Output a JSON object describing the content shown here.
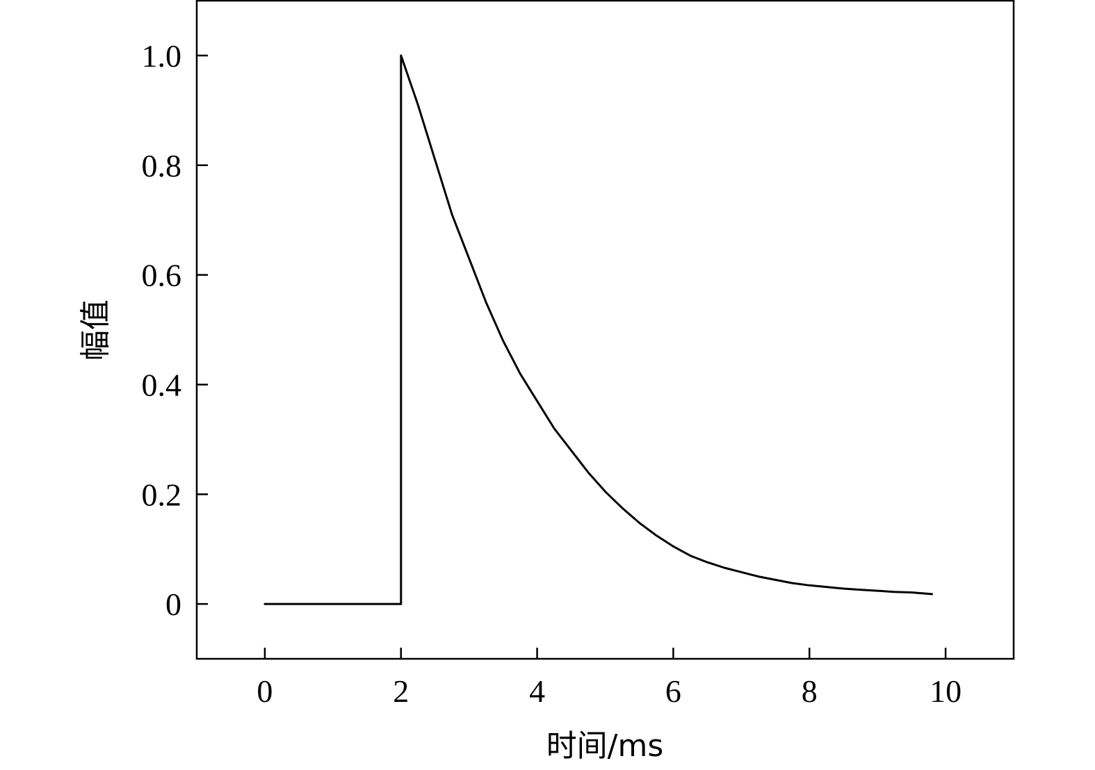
{
  "chart_data": {
    "type": "line",
    "title": "",
    "xlabel": "时间/ms",
    "ylabel": "幅值",
    "xlim": [
      -1,
      11
    ],
    "ylim": [
      -0.1,
      1.1
    ],
    "x_ticks": [
      0,
      2,
      4,
      6,
      8,
      10
    ],
    "x_tick_labels": [
      "0",
      "2",
      "4",
      "6",
      "8",
      "10"
    ],
    "y_ticks": [
      0,
      0.2,
      0.4,
      0.6,
      0.8,
      1.0
    ],
    "y_tick_labels": [
      "0",
      "0.2",
      "0.4",
      "0.6",
      "0.8",
      "1.0"
    ],
    "grid": false,
    "legend": "none",
    "line_color": "#000000",
    "series": [
      {
        "x": [
          0,
          2,
          2,
          2.25,
          2.5,
          2.75,
          3.0,
          3.25,
          3.5,
          3.75,
          4.0,
          4.25,
          4.5,
          4.75,
          5.0,
          5.25,
          5.5,
          5.75,
          6.0,
          6.25,
          6.5,
          6.75,
          7.0,
          7.25,
          7.5,
          7.75,
          8.0,
          8.25,
          8.5,
          8.75,
          9.0,
          9.25,
          9.5,
          9.8
        ],
        "y": [
          0,
          0,
          1.0,
          0.91,
          0.81,
          0.71,
          0.63,
          0.55,
          0.48,
          0.42,
          0.37,
          0.32,
          0.28,
          0.24,
          0.205,
          0.175,
          0.148,
          0.125,
          0.105,
          0.088,
          0.076,
          0.066,
          0.058,
          0.05,
          0.044,
          0.038,
          0.034,
          0.031,
          0.028,
          0.026,
          0.024,
          0.022,
          0.021,
          0.018
        ]
      }
    ]
  }
}
